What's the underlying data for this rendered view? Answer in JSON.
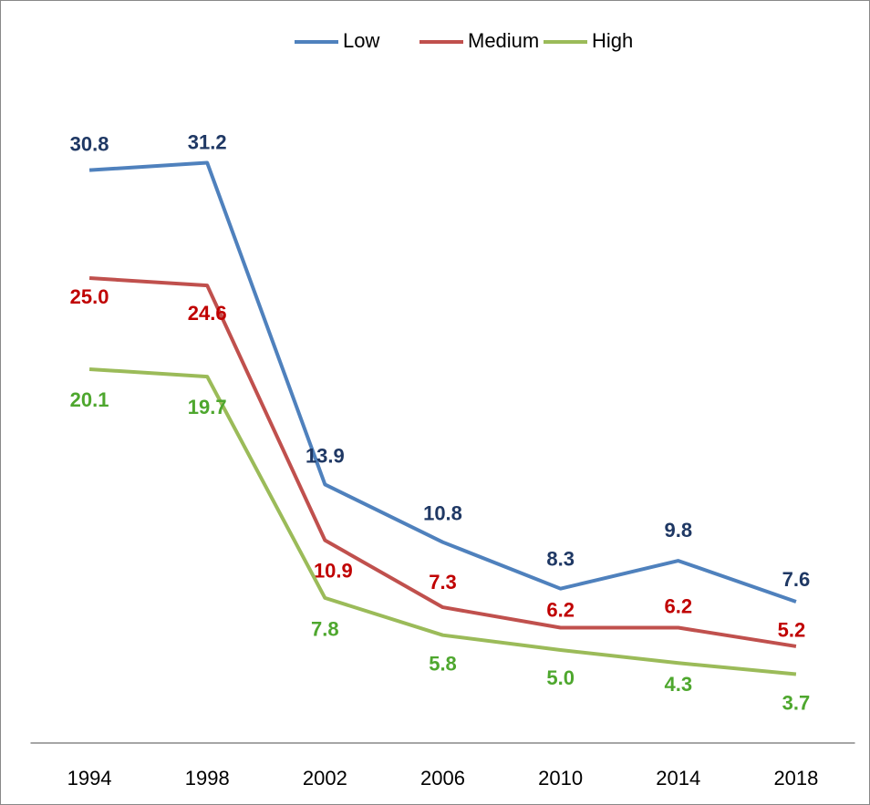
{
  "chart_data": {
    "type": "line",
    "categories": [
      "1994",
      "1998",
      "2002",
      "2006",
      "2010",
      "2014",
      "2018"
    ],
    "ylim": [
      0,
      35
    ],
    "legend": "top",
    "series": [
      {
        "name": "Low",
        "color": "#4f81bd",
        "label_color": "#1f3864",
        "values": [
          30.8,
          31.2,
          13.9,
          10.8,
          8.3,
          9.8,
          7.6
        ],
        "value_labels": [
          "30.8",
          "31.2",
          "13.9",
          "10.8",
          "8.3",
          "9.8",
          "7.6"
        ]
      },
      {
        "name": "Medium",
        "color": "#c0504d",
        "label_color": "#c00000",
        "values": [
          25.0,
          24.6,
          10.9,
          7.3,
          6.2,
          6.2,
          5.2
        ],
        "value_labels": [
          "25.0",
          "24.6",
          "10.9",
          "7.3",
          "6.2",
          "6.2",
          "5.2"
        ]
      },
      {
        "name": "High",
        "color": "#9bbb59",
        "label_color": "#4ea72e",
        "values": [
          20.1,
          19.7,
          7.8,
          5.8,
          5.0,
          4.3,
          3.7
        ],
        "value_labels": [
          "20.1",
          "19.7",
          "7.8",
          "5.8",
          "5.0",
          "4.3",
          "3.7"
        ]
      }
    ]
  }
}
